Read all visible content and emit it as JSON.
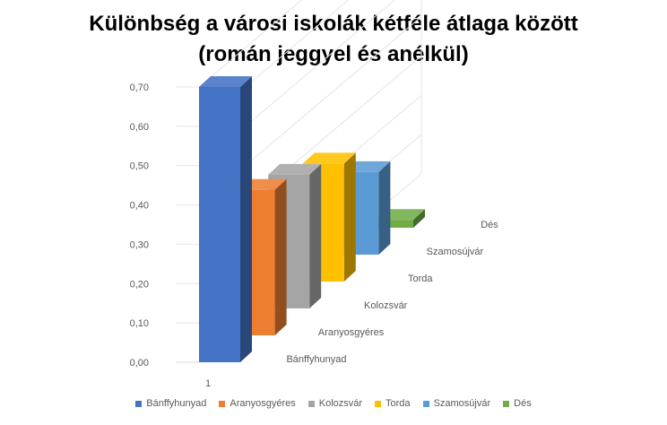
{
  "title_line1": "Különbség a városi iskolák kétféle átlaga között",
  "title_line2": "(román jeggyel és anélkül)",
  "chart_data": {
    "type": "bar",
    "variant": "3d-column-depth",
    "title": "Különbség a városi iskolák kétféle átlaga között (román jeggyel és anélkül)",
    "categories": [
      "1"
    ],
    "series": [
      {
        "name": "Bánffyhunyad",
        "values": [
          0.7
        ],
        "color": "#4472C4"
      },
      {
        "name": "Aranyosgyéres",
        "values": [
          0.37
        ],
        "color": "#ED7D31"
      },
      {
        "name": "Kolozsvár",
        "values": [
          0.34
        ],
        "color": "#A5A5A5"
      },
      {
        "name": "Torda",
        "values": [
          0.3
        ],
        "color": "#FFC000"
      },
      {
        "name": "Szamosújvár",
        "values": [
          0.21
        ],
        "color": "#5B9BD5"
      },
      {
        "name": "Dés",
        "values": [
          0.02
        ],
        "color": "#70AD47"
      }
    ],
    "y_ticks": [
      "0,00",
      "0,10",
      "0,20",
      "0,30",
      "0,40",
      "0,50",
      "0,60",
      "0,70"
    ],
    "ylim": [
      0,
      0.7
    ],
    "legend_position": "bottom",
    "grid": true
  }
}
